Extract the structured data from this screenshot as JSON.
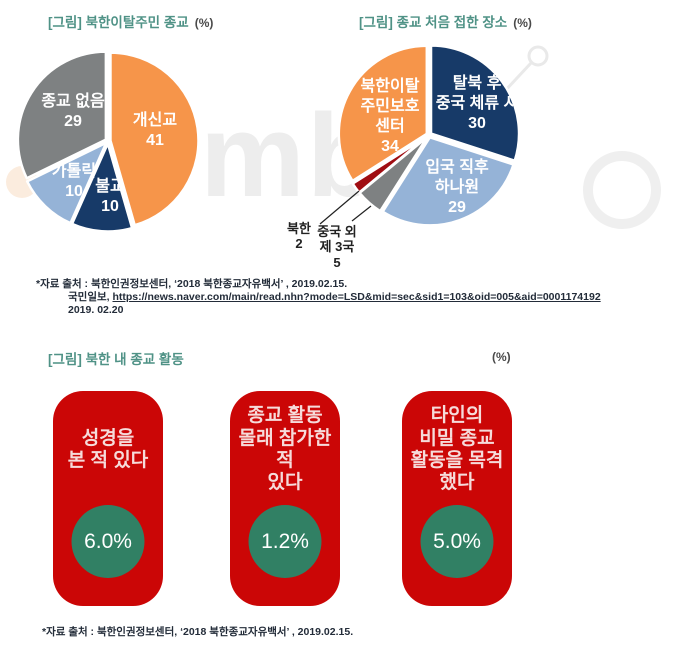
{
  "figures": {
    "fig1": {
      "title": "[그림] 북한이탈주민 종교",
      "unit": "(%)"
    },
    "fig2": {
      "title": "[그림] 종교 처음 접한 장소",
      "unit": "(%)"
    },
    "fig3": {
      "title": "[그림] 북한 내 종교 활동",
      "unit": "(%)"
    }
  },
  "chart_data": [
    {
      "type": "pie",
      "title": "[그림] 북한이탈주민 종교",
      "unit": "%",
      "legend_position": "inside",
      "slices": [
        {
          "label": "개신교",
          "value": 41,
          "color": "#F6954A"
        },
        {
          "label": "불교",
          "value": 10,
          "color": "#173A68"
        },
        {
          "label": "가톨릭",
          "value": 10,
          "color": "#95B3D7"
        },
        {
          "label": "종교 없음",
          "value": 29,
          "color": "#7E8182"
        }
      ]
    },
    {
      "type": "pie",
      "title": "[그림] 종교 처음 접한 장소",
      "unit": "%",
      "legend_position": "inside-with-callouts",
      "slices": [
        {
          "label": "탈북 후\n중국 체류 시",
          "value": 30,
          "color": "#173A68"
        },
        {
          "label": "입국 직후\n하나원",
          "value": 29,
          "color": "#95B3D7"
        },
        {
          "label": "중국 외\n제 3국",
          "value": 5,
          "color": "#7E8182"
        },
        {
          "label": "북한",
          "value": 2,
          "color": "#A00D12"
        },
        {
          "label": "북한이탈\n주민보호\n센터",
          "value": 34,
          "color": "#F6954A"
        }
      ]
    },
    {
      "type": "kpi-cards",
      "title": "[그림] 북한 내 종교 활동",
      "unit": "%",
      "card_color": "#CB0606",
      "circle_color": "#318064",
      "cards": [
        {
          "label": "성경을\n본 적 있다",
          "value": "6.0%"
        },
        {
          "label": "종교 활동\n몰래 참가한 적\n있다",
          "value": "1.2%"
        },
        {
          "label": "타인의\n비밀 종교\n활동을 목격\n했다",
          "value": "5.0%"
        }
      ]
    }
  ],
  "sources": {
    "top": {
      "line1": "*자료 출처 : 북한인권정보센터, ‘2018 북한종교자유백서’ , 2019.02.15.",
      "line2_prefix": "국민일보, ",
      "line2_link": "https://news.naver.com/main/read.nhn?mode=LSD&mid=sec&sid1=103&oid=005&aid=0001174192",
      "line3": "2019. 02.20"
    },
    "bottom": "*자료 출처 : 북한인권정보센터, ‘2018 북한종교자유백서’ , 2019.02.15."
  },
  "watermark": {
    "text": "mb"
  },
  "colors": {
    "accent_teal": "#4F9286",
    "source_text": "#232C39",
    "card_red": "#CB0606",
    "circle_green": "#318064"
  }
}
